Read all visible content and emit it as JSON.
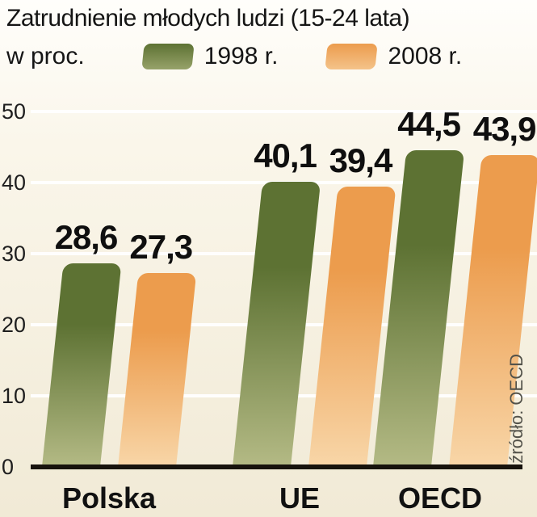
{
  "header": {
    "title_line1": "Zatrudnienie młodych ludzi (15-24 lata)",
    "title_line2": "w proc."
  },
  "legend": {
    "items": [
      {
        "label": "1998 r.",
        "color_top": "#5d7233",
        "color_bottom": "#b4ba85"
      },
      {
        "label": "2008 r.",
        "color_top": "#ec9c4d",
        "color_bottom": "#f8d6a8"
      }
    ]
  },
  "source_note": "źródło: OECD",
  "chart_data": {
    "type": "bar",
    "title": "Zatrudnienie młodych ludzi (15-24 lata) w proc.",
    "categories": [
      "Polska",
      "UE",
      "OECD"
    ],
    "series": [
      {
        "name": "1998 r.",
        "color_top": "#5d7233",
        "color_bottom": "#b4ba85",
        "values": [
          28.6,
          40.1,
          44.5
        ],
        "labels": [
          "28,6",
          "40,1",
          "44,5"
        ]
      },
      {
        "name": "2008 r.",
        "color_top": "#ec9c4d",
        "color_bottom": "#f8d6a8",
        "values": [
          27.3,
          39.4,
          43.9
        ],
        "labels": [
          "27,3",
          "39,4",
          "43,9"
        ]
      }
    ],
    "xlabel": "",
    "ylabel": "",
    "ylim": [
      0,
      50
    ],
    "yticks": [
      0,
      10,
      20,
      30,
      40,
      50
    ],
    "grid": true,
    "legend_position": "top",
    "source": "źródło: OECD"
  }
}
